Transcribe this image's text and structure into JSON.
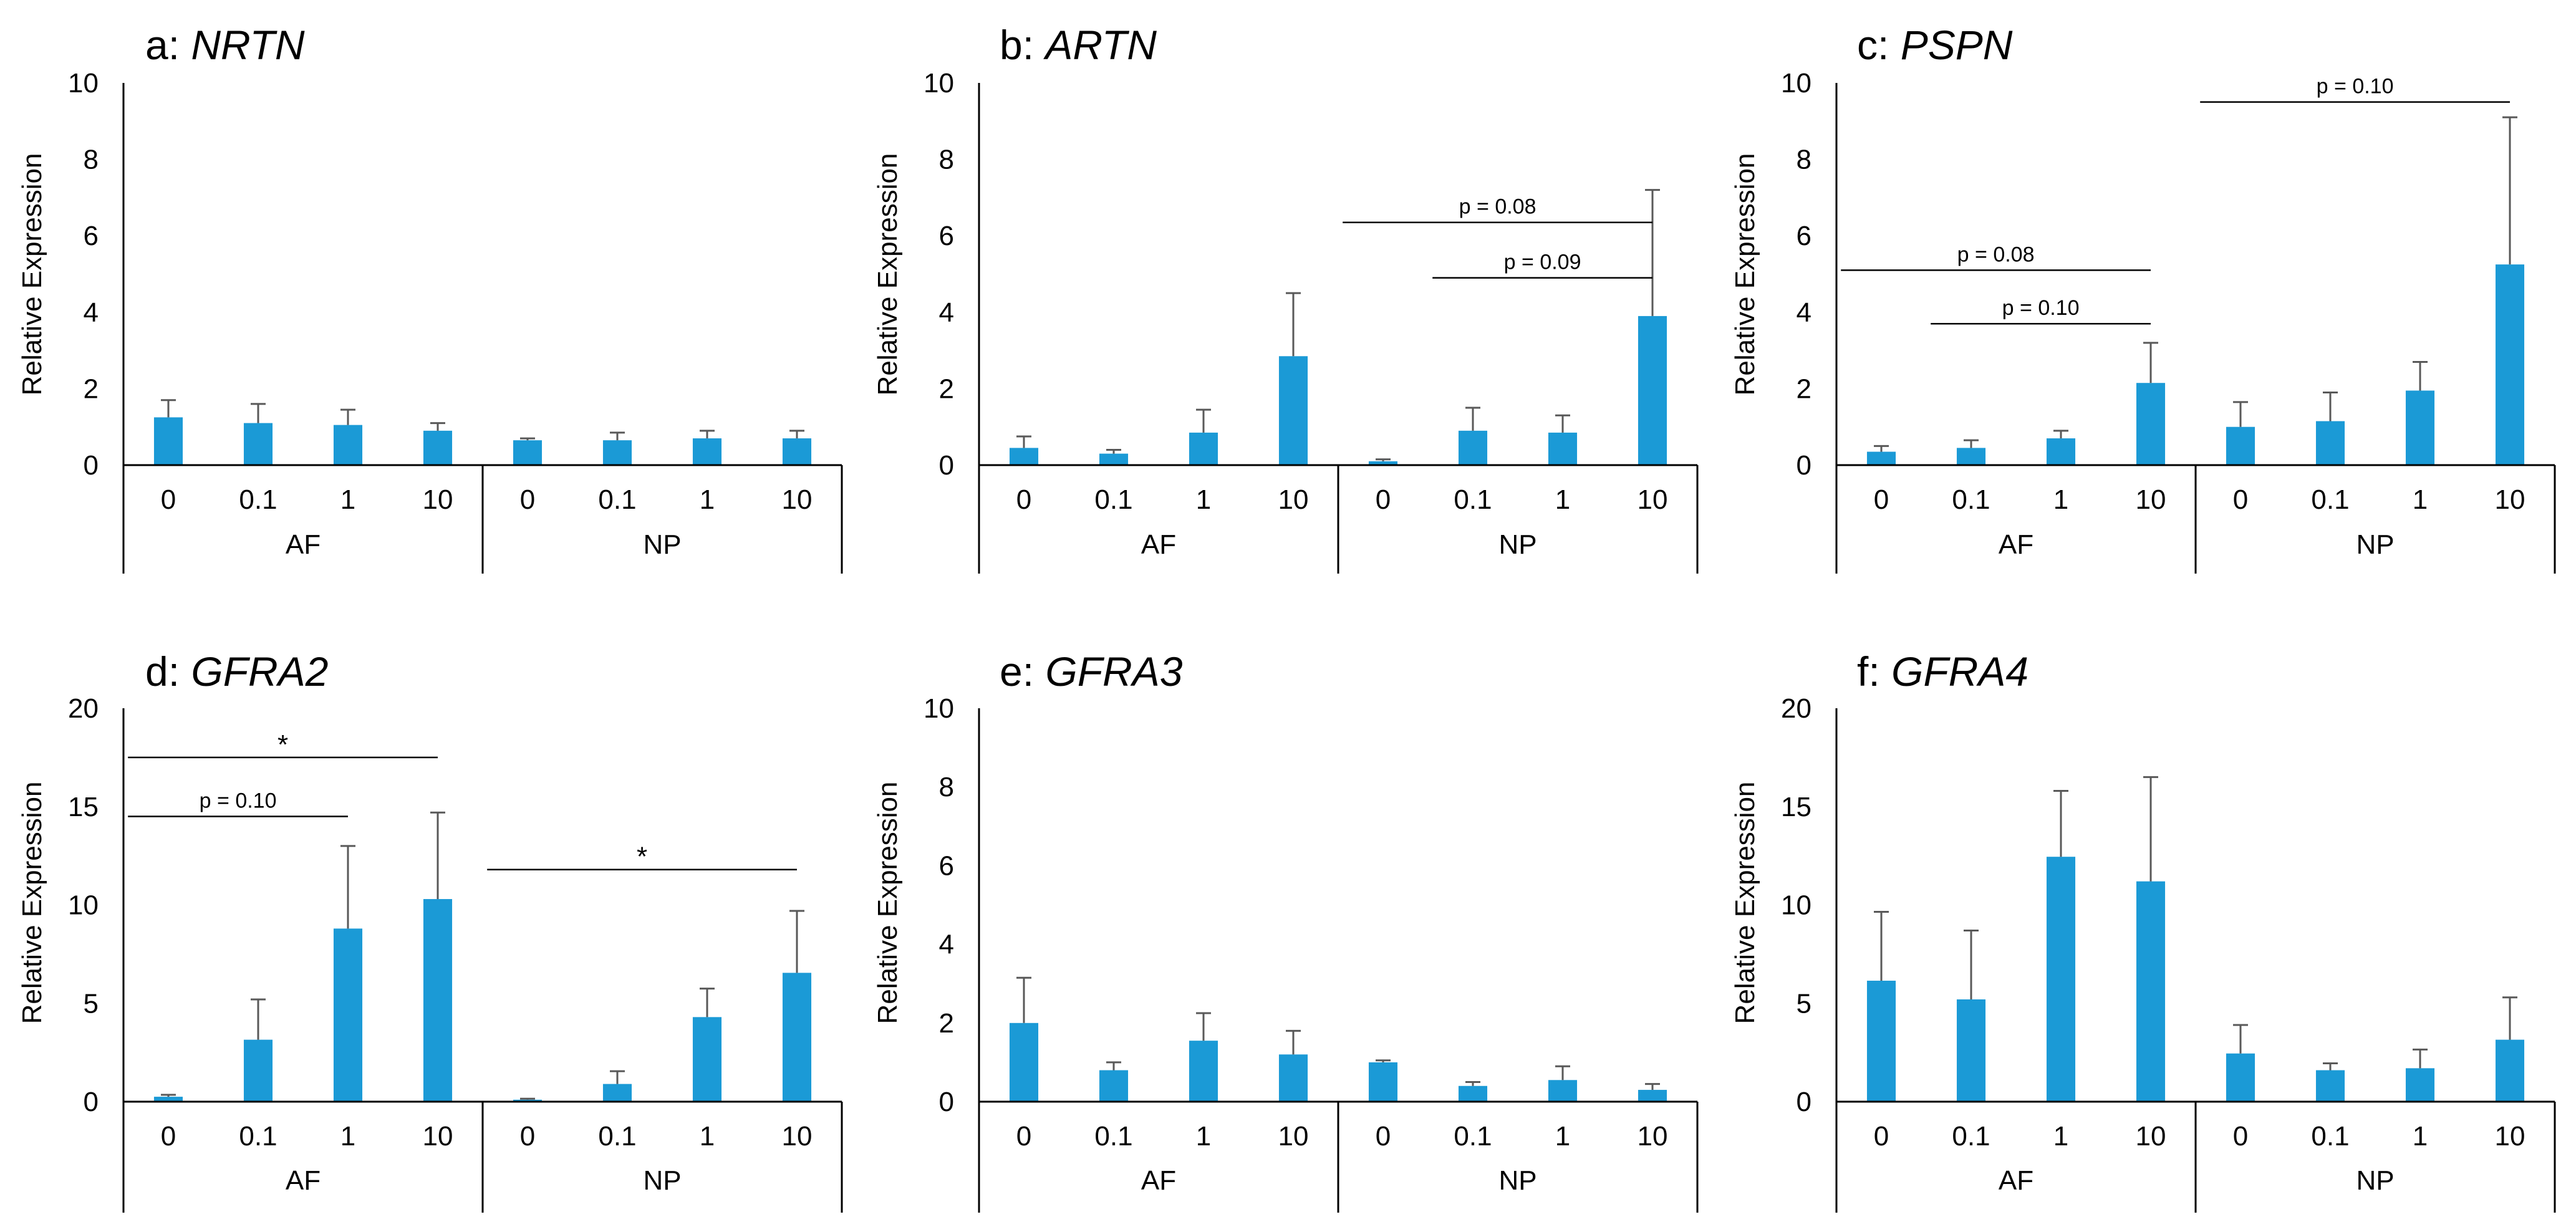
{
  "bar_color": "#1B9AD6",
  "error_color": "#595959",
  "chart_data": [
    {
      "id": "a",
      "type": "bar",
      "panel_letter": "a:",
      "gene": "NRTN",
      "ylabel": "Relative Expression",
      "ylim": [
        0,
        10
      ],
      "yticks": [
        0,
        2,
        4,
        6,
        8,
        10
      ],
      "categories": [
        "0",
        "0.1",
        "1",
        "10",
        "0",
        "0.1",
        "1",
        "10"
      ],
      "groups": [
        "AF",
        "NP"
      ],
      "values": [
        1.25,
        1.1,
        1.05,
        0.9,
        0.65,
        0.65,
        0.7,
        0.7
      ],
      "errors": [
        0.45,
        0.5,
        0.4,
        0.2,
        0.05,
        0.2,
        0.2,
        0.2
      ],
      "comparisons": []
    },
    {
      "id": "b",
      "type": "bar",
      "panel_letter": "b:",
      "gene": "ARTN",
      "ylabel": "Relative Expression",
      "ylim": [
        0,
        10
      ],
      "yticks": [
        0,
        2,
        4,
        6,
        8,
        10
      ],
      "categories": [
        "0",
        "0.1",
        "1",
        "10",
        "0",
        "0.1",
        "1",
        "10"
      ],
      "groups": [
        "AF",
        "NP"
      ],
      "values": [
        0.45,
        0.3,
        0.85,
        2.85,
        0.1,
        0.9,
        0.85,
        3.9
      ],
      "errors": [
        0.3,
        0.1,
        0.6,
        1.65,
        0.05,
        0.6,
        0.45,
        3.3
      ],
      "comparisons": [
        {
          "from": 4,
          "to": 7,
          "y": 6.35,
          "label": "p = 0.08"
        },
        {
          "from": 5,
          "to": 7,
          "y": 4.9,
          "label": "p = 0.09"
        }
      ]
    },
    {
      "id": "c",
      "type": "bar",
      "panel_letter": "c:",
      "gene": "PSPN",
      "ylabel": "Relative Expression",
      "ylim": [
        0,
        10
      ],
      "yticks": [
        0,
        2,
        4,
        6,
        8,
        10
      ],
      "categories": [
        "0",
        "0.1",
        "1",
        "10",
        "0",
        "0.1",
        "1",
        "10"
      ],
      "groups": [
        "AF",
        "NP"
      ],
      "values": [
        0.35,
        0.45,
        0.7,
        2.15,
        1.0,
        1.15,
        1.95,
        5.25
      ],
      "errors": [
        0.15,
        0.2,
        0.2,
        1.05,
        0.65,
        0.75,
        0.75,
        3.85
      ],
      "comparisons": [
        {
          "from": 0,
          "to": 3,
          "y": 5.1,
          "label": "p = 0.08"
        },
        {
          "from": 1,
          "to": 3,
          "y": 3.7,
          "label": "p = 0.10"
        },
        {
          "from": 4,
          "to": 7,
          "y": 9.5,
          "label": "p = 0.10"
        }
      ]
    },
    {
      "id": "d",
      "type": "bar",
      "panel_letter": "d:",
      "gene": "GFRA2",
      "ylabel": "Relative Expression",
      "ylim": [
        0,
        20
      ],
      "yticks": [
        0,
        5,
        10,
        15,
        20
      ],
      "categories": [
        "0",
        "0.1",
        "1",
        "10",
        "0",
        "0.1",
        "1",
        "10"
      ],
      "groups": [
        "AF",
        "NP"
      ],
      "values": [
        0.25,
        3.15,
        8.8,
        10.3,
        0.1,
        0.9,
        4.3,
        6.55
      ],
      "errors": [
        0.1,
        2.05,
        4.2,
        4.4,
        0.05,
        0.65,
        1.45,
        3.15
      ],
      "comparisons": [
        {
          "from": 0,
          "to": 3,
          "y": 17.5,
          "label": "*"
        },
        {
          "from": 0,
          "to": 2,
          "y": 14.5,
          "label": "p = 0.10"
        },
        {
          "from": 4,
          "to": 7,
          "y": 11.8,
          "label": "*"
        }
      ]
    },
    {
      "id": "e",
      "type": "bar",
      "panel_letter": "e:",
      "gene": "GFRA3",
      "ylabel": "Relative Expression",
      "ylim": [
        0,
        10
      ],
      "yticks": [
        0,
        2,
        4,
        6,
        8,
        10
      ],
      "categories": [
        "0",
        "0.1",
        "1",
        "10",
        "0",
        "0.1",
        "1",
        "10"
      ],
      "groups": [
        "AF",
        "NP"
      ],
      "values": [
        2.0,
        0.8,
        1.55,
        1.2,
        1.0,
        0.4,
        0.55,
        0.3
      ],
      "errors": [
        1.15,
        0.2,
        0.7,
        0.6,
        0.05,
        0.1,
        0.35,
        0.15
      ],
      "comparisons": []
    },
    {
      "id": "f",
      "type": "bar",
      "panel_letter": "f:",
      "gene": "GFRA4",
      "ylabel": "Relative Expression",
      "ylim": [
        0,
        20
      ],
      "yticks": [
        0,
        5,
        10,
        15,
        20
      ],
      "categories": [
        "0",
        "0.1",
        "1",
        "10",
        "0",
        "0.1",
        "1",
        "10"
      ],
      "groups": [
        "AF",
        "NP"
      ],
      "values": [
        6.15,
        5.2,
        12.45,
        11.2,
        2.45,
        1.6,
        1.7,
        3.15
      ],
      "errors": [
        3.5,
        3.5,
        3.35,
        5.3,
        1.45,
        0.35,
        0.95,
        2.15
      ],
      "comparisons": []
    }
  ]
}
